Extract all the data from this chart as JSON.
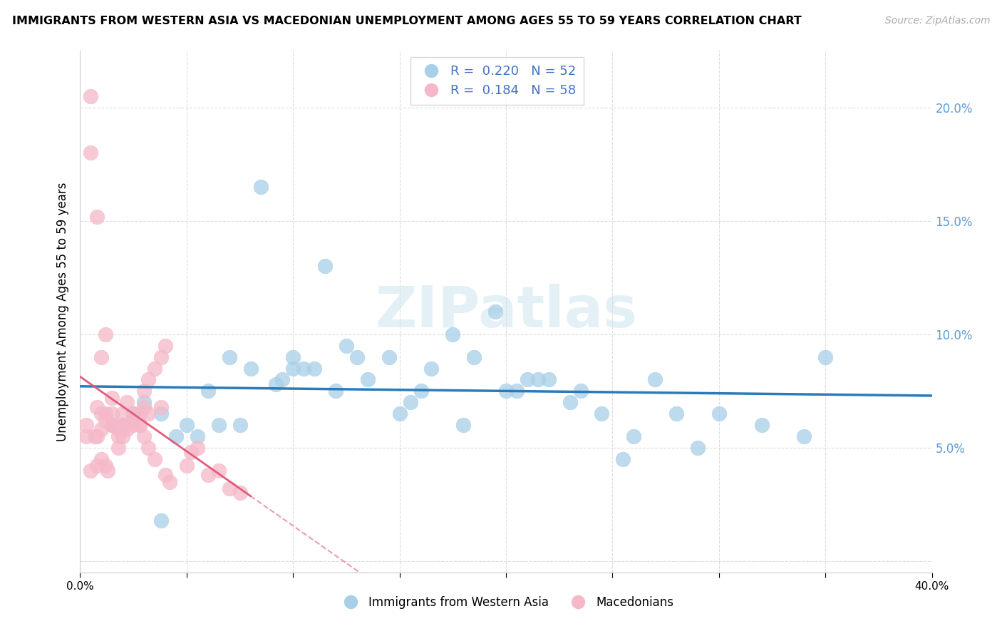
{
  "title": "IMMIGRANTS FROM WESTERN ASIA VS MACEDONIAN UNEMPLOYMENT AMONG AGES 55 TO 59 YEARS CORRELATION CHART",
  "source": "Source: ZipAtlas.com",
  "ylabel": "Unemployment Among Ages 55 to 59 years",
  "xlim": [
    0.0,
    0.4
  ],
  "ylim": [
    -0.005,
    0.225
  ],
  "legend_blue_r": "0.220",
  "legend_blue_n": "52",
  "legend_pink_r": "0.184",
  "legend_pink_n": "58",
  "blue_color": "#a8cfe8",
  "pink_color": "#f5b8c8",
  "blue_line_color": "#2b7bba",
  "pink_line_color": "#e05c7a",
  "blue_scatter_x": [
    0.085,
    0.045,
    0.065,
    0.075,
    0.025,
    0.038,
    0.03,
    0.05,
    0.06,
    0.07,
    0.08,
    0.1,
    0.115,
    0.125,
    0.155,
    0.145,
    0.165,
    0.175,
    0.185,
    0.195,
    0.205,
    0.22,
    0.235,
    0.245,
    0.255,
    0.27,
    0.1,
    0.12,
    0.135,
    0.15,
    0.16,
    0.18,
    0.35,
    0.038,
    0.015,
    0.02,
    0.105,
    0.13,
    0.095,
    0.11,
    0.2,
    0.215,
    0.28,
    0.3,
    0.32,
    0.34,
    0.055,
    0.092,
    0.21,
    0.23,
    0.26,
    0.29
  ],
  "blue_scatter_y": [
    0.165,
    0.055,
    0.06,
    0.06,
    0.065,
    0.065,
    0.07,
    0.06,
    0.075,
    0.09,
    0.085,
    0.09,
    0.13,
    0.095,
    0.07,
    0.09,
    0.085,
    0.1,
    0.09,
    0.11,
    0.075,
    0.08,
    0.075,
    0.065,
    0.045,
    0.08,
    0.085,
    0.075,
    0.08,
    0.065,
    0.075,
    0.06,
    0.09,
    0.018,
    0.06,
    0.06,
    0.085,
    0.09,
    0.08,
    0.085,
    0.075,
    0.08,
    0.065,
    0.065,
    0.06,
    0.055,
    0.055,
    0.078,
    0.08,
    0.07,
    0.055,
    0.05
  ],
  "pink_scatter_x": [
    0.005,
    0.005,
    0.008,
    0.01,
    0.012,
    0.015,
    0.015,
    0.018,
    0.02,
    0.022,
    0.025,
    0.028,
    0.03,
    0.032,
    0.035,
    0.038,
    0.04,
    0.012,
    0.008,
    0.01,
    0.015,
    0.02,
    0.025,
    0.03,
    0.008,
    0.01,
    0.012,
    0.015,
    0.018,
    0.022,
    0.028,
    0.032,
    0.038,
    0.005,
    0.008,
    0.01,
    0.012,
    0.018,
    0.02,
    0.022,
    0.025,
    0.028,
    0.03,
    0.032,
    0.035,
    0.04,
    0.042,
    0.05,
    0.052,
    0.055,
    0.06,
    0.065,
    0.07,
    0.075,
    0.003,
    0.003,
    0.007,
    0.013
  ],
  "pink_scatter_y": [
    0.205,
    0.18,
    0.152,
    0.09,
    0.065,
    0.065,
    0.06,
    0.058,
    0.065,
    0.07,
    0.06,
    0.065,
    0.075,
    0.08,
    0.085,
    0.09,
    0.095,
    0.1,
    0.068,
    0.065,
    0.072,
    0.06,
    0.062,
    0.068,
    0.055,
    0.058,
    0.062,
    0.06,
    0.055,
    0.058,
    0.06,
    0.065,
    0.068,
    0.04,
    0.042,
    0.045,
    0.042,
    0.05,
    0.055,
    0.06,
    0.065,
    0.06,
    0.055,
    0.05,
    0.045,
    0.038,
    0.035,
    0.042,
    0.048,
    0.05,
    0.038,
    0.04,
    0.032,
    0.03,
    0.06,
    0.055,
    0.055,
    0.04
  ]
}
